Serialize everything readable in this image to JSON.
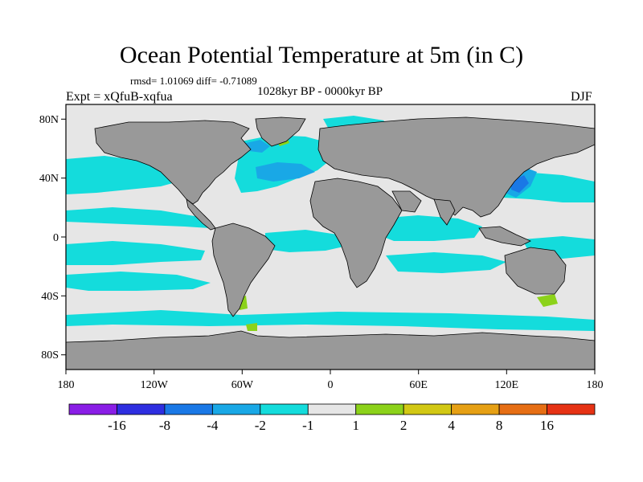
{
  "title": "Ocean Potential Temperature at 5m (in C)",
  "stats": "rmsd= 1.01069 diff= -0.71089",
  "period": "1028kyr BP - 0000kyr BP",
  "experiment": "Expt = xQfuB-xqfua",
  "season": "DJF",
  "x_ticks": [
    "180",
    "120W",
    "60W",
    "0",
    "60E",
    "120E",
    "180"
  ],
  "y_ticks": [
    "80N",
    "40N",
    "0",
    "40S",
    "80S"
  ],
  "colorbar": {
    "labels": [
      "-16",
      "-8",
      "-4",
      "-2",
      "-1",
      "1",
      "2",
      "4",
      "8",
      "16"
    ],
    "colors": [
      "#8a1ee6",
      "#2e2ee0",
      "#1a78e6",
      "#19a8e6",
      "#14dcdc",
      "#e6e6e6",
      "#8cd21a",
      "#d2c814",
      "#e6a014",
      "#e66e14",
      "#e63214"
    ]
  },
  "colors": {
    "land": "#999999",
    "background": "#e6e6e6",
    "cool_light": "#14dcdc",
    "cool_mid": "#19a8e6",
    "cool_strong": "#1a78e6",
    "cool_deep": "#2e2ee0",
    "warm": "#8cd21a",
    "warm2": "#d2c814"
  }
}
